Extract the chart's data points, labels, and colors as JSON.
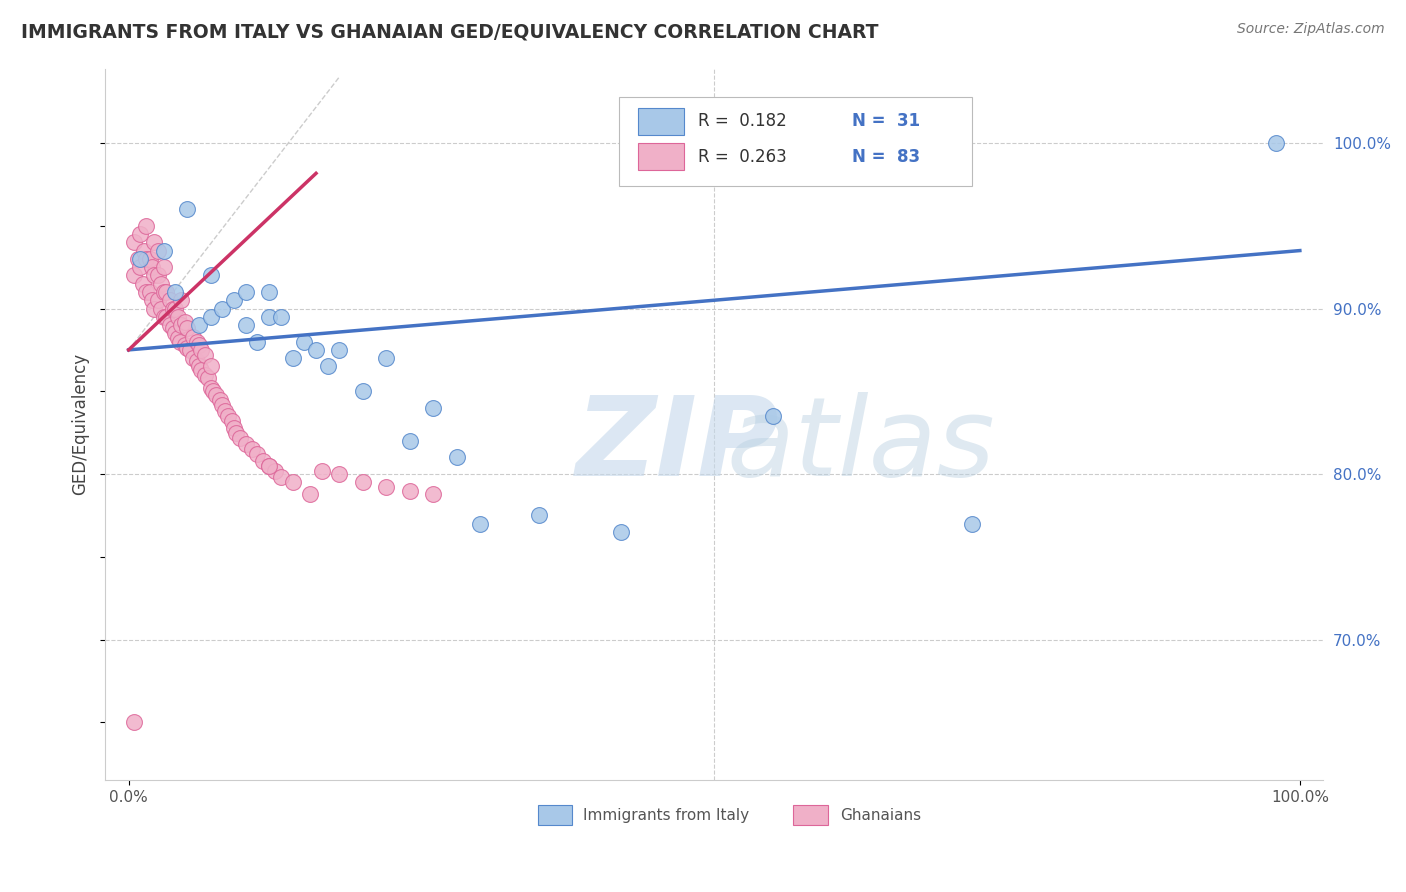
{
  "title": "IMMIGRANTS FROM ITALY VS GHANAIAN GED/EQUIVALENCY CORRELATION CHART",
  "source": "Source: ZipAtlas.com",
  "ylabel": "GED/Equivalency",
  "xlim": [
    -0.02,
    1.02
  ],
  "ylim": [
    0.615,
    1.045
  ],
  "ytick_labels_right": [
    "70.0%",
    "80.0%",
    "90.0%",
    "100.0%"
  ],
  "ytick_positions_right": [
    0.7,
    0.8,
    0.9,
    1.0
  ],
  "color_italy": "#a8c8e8",
  "color_ghana": "#f0b0c8",
  "color_italy_edge": "#5588cc",
  "color_ghana_edge": "#dd6699",
  "color_line_italy": "#4472c4",
  "color_line_ghana": "#cc3366",
  "italy_x": [
    0.01,
    0.03,
    0.04,
    0.05,
    0.06,
    0.07,
    0.07,
    0.08,
    0.09,
    0.1,
    0.1,
    0.11,
    0.12,
    0.12,
    0.13,
    0.14,
    0.15,
    0.16,
    0.17,
    0.18,
    0.2,
    0.22,
    0.24,
    0.26,
    0.28,
    0.3,
    0.35,
    0.42,
    0.55,
    0.72,
    0.98
  ],
  "italy_y": [
    0.93,
    0.935,
    0.91,
    0.96,
    0.89,
    0.895,
    0.92,
    0.9,
    0.905,
    0.89,
    0.91,
    0.88,
    0.895,
    0.91,
    0.895,
    0.87,
    0.88,
    0.875,
    0.865,
    0.875,
    0.85,
    0.87,
    0.82,
    0.84,
    0.81,
    0.77,
    0.775,
    0.765,
    0.835,
    0.77,
    1.0
  ],
  "ghana_x": [
    0.005,
    0.005,
    0.008,
    0.01,
    0.01,
    0.012,
    0.013,
    0.015,
    0.015,
    0.015,
    0.018,
    0.018,
    0.02,
    0.02,
    0.022,
    0.022,
    0.022,
    0.025,
    0.025,
    0.025,
    0.028,
    0.028,
    0.03,
    0.03,
    0.03,
    0.032,
    0.032,
    0.035,
    0.035,
    0.038,
    0.038,
    0.04,
    0.04,
    0.042,
    0.042,
    0.044,
    0.045,
    0.045,
    0.048,
    0.048,
    0.05,
    0.05,
    0.052,
    0.055,
    0.055,
    0.058,
    0.058,
    0.06,
    0.06,
    0.062,
    0.062,
    0.065,
    0.065,
    0.068,
    0.07,
    0.07,
    0.072,
    0.075,
    0.078,
    0.08,
    0.082,
    0.085,
    0.088,
    0.09,
    0.092,
    0.095,
    0.1,
    0.105,
    0.11,
    0.115,
    0.12,
    0.125,
    0.13,
    0.14,
    0.155,
    0.165,
    0.18,
    0.2,
    0.22,
    0.24,
    0.26,
    0.005,
    0.12
  ],
  "ghana_y": [
    0.92,
    0.94,
    0.93,
    0.925,
    0.945,
    0.915,
    0.935,
    0.91,
    0.93,
    0.95,
    0.91,
    0.93,
    0.905,
    0.925,
    0.9,
    0.92,
    0.94,
    0.905,
    0.92,
    0.935,
    0.9,
    0.915,
    0.895,
    0.91,
    0.925,
    0.895,
    0.91,
    0.89,
    0.905,
    0.888,
    0.9,
    0.885,
    0.9,
    0.882,
    0.895,
    0.88,
    0.89,
    0.905,
    0.878,
    0.892,
    0.876,
    0.888,
    0.875,
    0.87,
    0.883,
    0.868,
    0.88,
    0.865,
    0.878,
    0.863,
    0.875,
    0.86,
    0.872,
    0.858,
    0.852,
    0.865,
    0.85,
    0.848,
    0.845,
    0.842,
    0.838,
    0.835,
    0.832,
    0.828,
    0.825,
    0.822,
    0.818,
    0.815,
    0.812,
    0.808,
    0.805,
    0.802,
    0.798,
    0.795,
    0.788,
    0.802,
    0.8,
    0.795,
    0.792,
    0.79,
    0.788,
    0.65,
    0.805
  ]
}
